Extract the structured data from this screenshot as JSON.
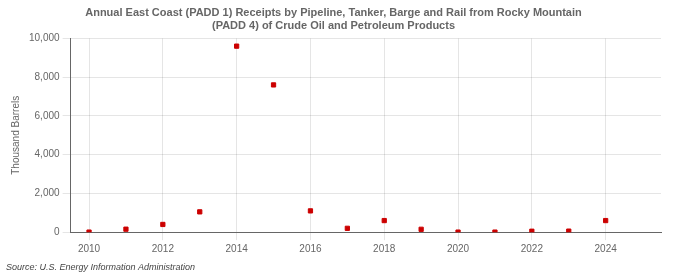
{
  "chart_data": {
    "type": "scatter",
    "title": "Annual East Coast (PADD 1) Receipts by Pipeline, Tanker, Barge and Rail from Rocky Mountain\n(PADD 4) of Crude Oil and Petroleum Products",
    "ylabel": "Thousand Barrels",
    "annotations": [
      "Source: U.S. Energy Information Administration"
    ],
    "x": [
      2010,
      2011,
      2012,
      2013,
      2014,
      2015,
      2016,
      2017,
      2018,
      2019,
      2020,
      2021,
      2022,
      2023,
      2024
    ],
    "values": [
      5,
      155,
      400,
      1050,
      9600,
      7600,
      1100,
      200,
      600,
      150,
      5,
      5,
      50,
      55,
      600
    ],
    "color": "#cc0000",
    "marker": "square",
    "xlim": [
      2009.5,
      2025.5
    ],
    "xticks": [
      2010,
      2012,
      2014,
      2016,
      2018,
      2020,
      2022,
      2024
    ],
    "ylim": [
      0,
      10000
    ],
    "yticks": [
      0,
      {
        "value": 2000,
        "label": "2,000"
      },
      {
        "value": 4000,
        "label": "4,000"
      },
      {
        "value": 6000,
        "label": "6,000"
      },
      {
        "value": 8000,
        "label": "8,000"
      },
      {
        "value": 10000,
        "label": "10,000"
      }
    ],
    "grid": true
  }
}
